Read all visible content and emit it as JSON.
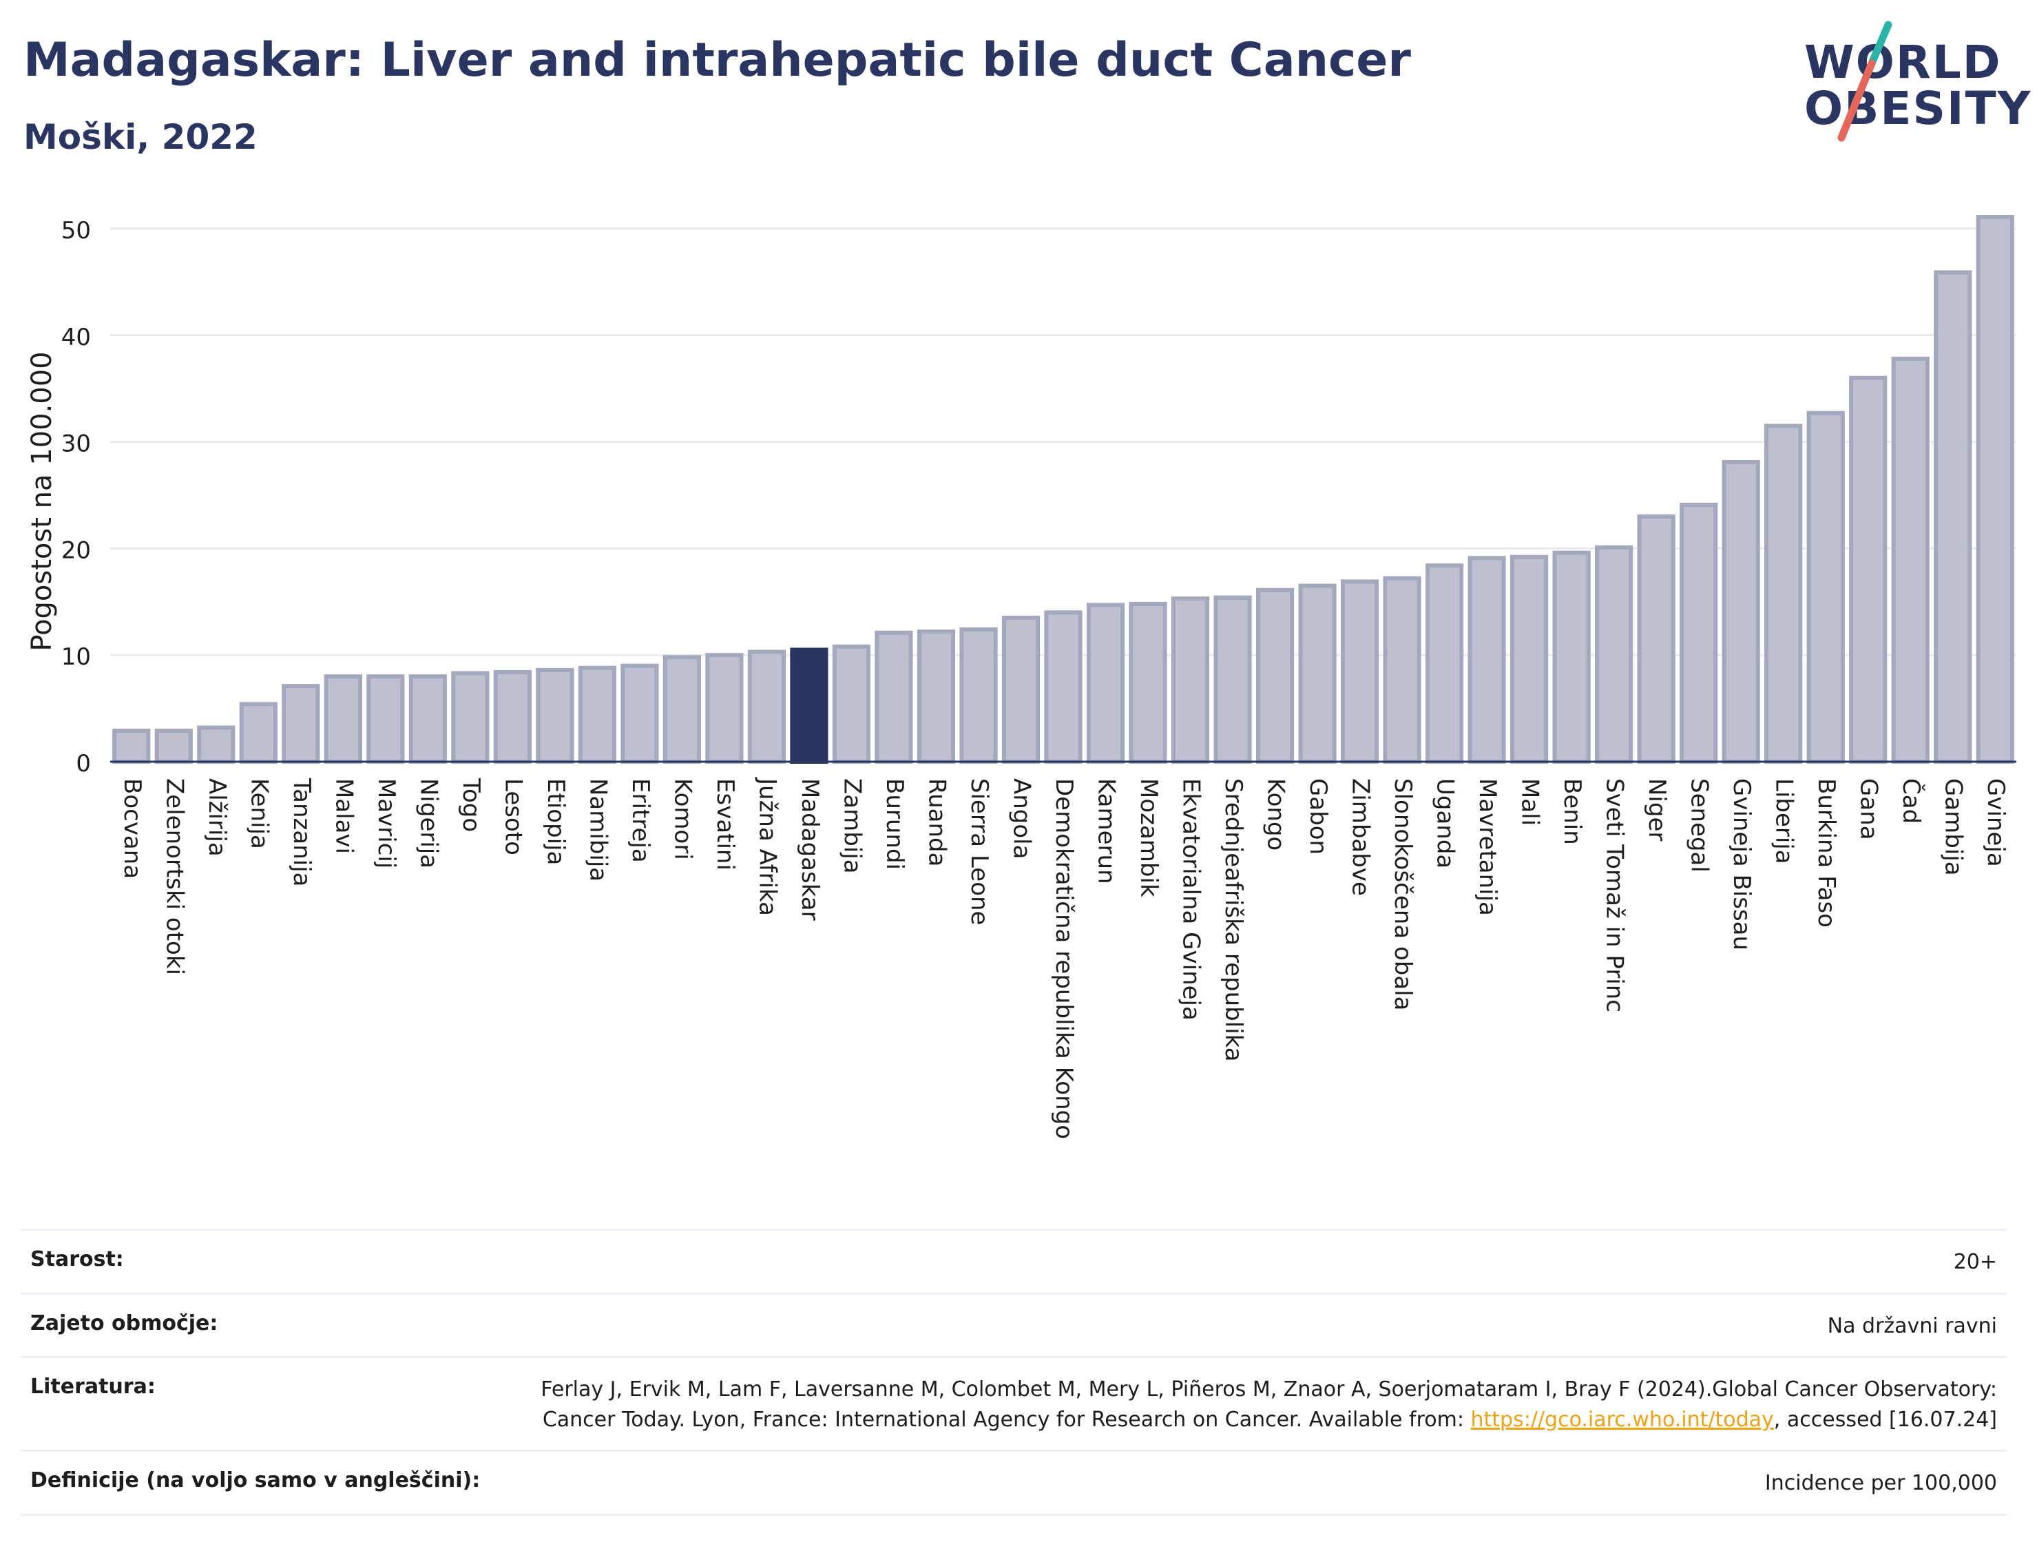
{
  "title": "Madagaskar: Liver and intrahepatic bile duct Cancer",
  "subtitle": "Moški, 2022",
  "logo": {
    "line1": "WORLD",
    "line2": "OBESITY"
  },
  "colors": {
    "bar": "#bcc0cf",
    "bar_stroke": "#a3a8bd",
    "highlight": "#2a3561",
    "title": "#2a3561",
    "grid": "#e9ebf0",
    "accent_teal": "#2bb3a8",
    "accent_coral": "#e4675a"
  },
  "chart_data": {
    "type": "bar",
    "title": "Madagaskar: Liver and intrahepatic bile duct Cancer",
    "subtitle": "Moški, 2022",
    "ylabel": "Pogostost na 100.000",
    "xlabel": "",
    "ylim": [
      0,
      52
    ],
    "yticks": [
      0,
      10,
      20,
      30,
      40,
      50
    ],
    "grid": true,
    "highlight": "Madagaskar",
    "categories": [
      "Bocvana",
      "Zelenortski otoki",
      "Alžirija",
      "Kenija",
      "Tanzanija",
      "Malavi",
      "Mavricij",
      "Nigerija",
      "Togo",
      "Lesoto",
      "Etiopija",
      "Namibija",
      "Eritreja",
      "Komori",
      "Esvatini",
      "Južna Afrika",
      "Madagaskar",
      "Zambija",
      "Burundi",
      "Ruanda",
      "Sierra Leone",
      "Angola",
      "Demokratična republika Kongo",
      "Kamerun",
      "Mozambik",
      "Ekvatorialna Gvineja",
      "Srednjeafriška republika",
      "Kongo",
      "Gabon",
      "Zimbabve",
      "Slonokoščena obala",
      "Uganda",
      "Mavretanija",
      "Mali",
      "Benin",
      "Sveti Tomaž in Princ",
      "Niger",
      "Senegal",
      "Gvineja Bissau",
      "Liberija",
      "Burkina Faso",
      "Gana",
      "Čad",
      "Gambija",
      "Gvineja"
    ],
    "values": [
      2.9,
      2.9,
      3.2,
      5.4,
      7.1,
      8.0,
      8.0,
      8.0,
      8.3,
      8.4,
      8.6,
      8.8,
      9.0,
      9.8,
      10.0,
      10.3,
      10.5,
      10.8,
      12.1,
      12.2,
      12.4,
      13.5,
      14.0,
      14.7,
      14.8,
      15.3,
      15.4,
      16.1,
      16.5,
      16.9,
      17.2,
      18.4,
      19.1,
      19.2,
      19.6,
      20.1,
      23.0,
      24.1,
      28.1,
      31.5,
      32.7,
      36.0,
      37.8,
      45.9,
      51.1
    ]
  },
  "info": [
    {
      "label": "Starost:",
      "value": "20+"
    },
    {
      "label": "Zajeto območje:",
      "value": "Na državni ravni"
    },
    {
      "label": "Literatura:",
      "value_part1": "Ferlay J, Ervik M, Lam F, Laversanne M, Colombet M, Mery L, Piñeros M, Znaor A, Soerjomataram I, Bray F (2024).Global Cancer Observatory: Cancer Today. Lyon, France: International Agency for Research on Cancer. Available from: ",
      "link": "https://gco.iarc.who.int/today",
      "value_part2": ", accessed [16.07.24]"
    },
    {
      "label": "Definicije (na voljo samo v angleščini):",
      "value": "Incidence per 100,000"
    }
  ]
}
